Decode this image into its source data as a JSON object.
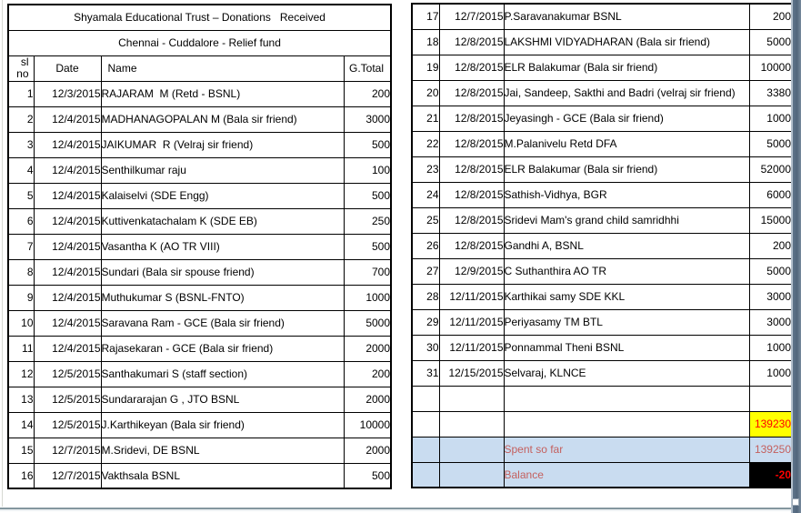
{
  "title": "Shyamala Educational Trust – Donations   Received",
  "subtitle": "Chennai - Cuddalore - Relief fund",
  "columns": {
    "sl": "sl no",
    "date": "Date",
    "name": "Name",
    "total": "G.Total"
  },
  "left_rows": [
    {
      "sl": "1",
      "date": "12/3/2015",
      "name": "RAJARAM  M (Retd - BSNL)",
      "total": "200"
    },
    {
      "sl": "2",
      "date": "12/4/2015",
      "name": "MADHANAGOPALAN M (Bala sir friend)",
      "total": "3000"
    },
    {
      "sl": "3",
      "date": "12/4/2015",
      "name": "JAIKUMAR  R (Velraj sir friend)",
      "total": "500"
    },
    {
      "sl": "4",
      "date": "12/4/2015",
      "name": "Senthilkumar raju",
      "total": "100"
    },
    {
      "sl": "5",
      "date": "12/4/2015",
      "name": "Kalaiselvi (SDE Engg)",
      "total": "500"
    },
    {
      "sl": "6",
      "date": "12/4/2015",
      "name": "Kuttivenkatachalam K (SDE EB)",
      "total": "250"
    },
    {
      "sl": "7",
      "date": "12/4/2015",
      "name": "Vasantha K (AO TR VIII)",
      "total": "500"
    },
    {
      "sl": "8",
      "date": "12/4/2015",
      "name": "Sundari (Bala sir spouse friend)",
      "total": "700"
    },
    {
      "sl": "9",
      "date": "12/4/2015",
      "name": "Muthukumar S (BSNL-FNTO)",
      "total": "1000"
    },
    {
      "sl": "10",
      "date": "12/4/2015",
      "name": "Saravana Ram - GCE (Bala sir friend)",
      "total": "5000"
    },
    {
      "sl": "11",
      "date": "12/4/2015",
      "name": "Rajasekaran - GCE (Bala sir friend)",
      "total": "2000"
    },
    {
      "sl": "12",
      "date": "12/5/2015",
      "name": "Santhakumari S (staff section)",
      "total": "200"
    },
    {
      "sl": "13",
      "date": "12/5/2015",
      "name": "Sundararajan G , JTO BSNL",
      "total": "2000"
    },
    {
      "sl": "14",
      "date": "12/5/2015",
      "name": "J.Karthikeyan (Bala sir friend)",
      "total": "10000"
    },
    {
      "sl": "15",
      "date": "12/7/2015",
      "name": "M.Sridevi, DE BSNL",
      "total": "2000"
    },
    {
      "sl": "16",
      "date": "12/7/2015",
      "name": "Vakthsala BSNL",
      "total": "500"
    }
  ],
  "right_rows": [
    {
      "sl": "17",
      "date": "12/7/2015",
      "name": "P.Saravanakumar BSNL",
      "total": "200"
    },
    {
      "sl": "18",
      "date": "12/8/2015",
      "name": "LAKSHMI VIDYADHARAN (Bala sir friend)",
      "total": "5000"
    },
    {
      "sl": "19",
      "date": "12/8/2015",
      "name": "ELR Balakumar (Bala sir friend)",
      "total": "10000"
    },
    {
      "sl": "20",
      "date": "12/8/2015",
      "name": "Jai, Sandeep, Sakthi and Badri (velraj sir friend)",
      "total": "3380"
    },
    {
      "sl": "21",
      "date": "12/8/2015",
      "name": "Jeyasingh - GCE (Bala sir friend)",
      "total": "1000"
    },
    {
      "sl": "22",
      "date": "12/8/2015",
      "name": "M.Palanivelu Retd DFA",
      "total": "5000"
    },
    {
      "sl": "23",
      "date": "12/8/2015",
      "name": "ELR Balakumar (Bala sir friend)",
      "total": "52000"
    },
    {
      "sl": "24",
      "date": "12/8/2015",
      "name": "Sathish-Vidhya, BGR",
      "total": "6000"
    },
    {
      "sl": "25",
      "date": "12/8/2015",
      "name": "Sridevi Mam's grand child samridhhi",
      "total": "15000"
    },
    {
      "sl": "26",
      "date": "12/8/2015",
      "name": "Gandhi A, BSNL",
      "total": "200"
    },
    {
      "sl": "27",
      "date": "12/9/2015",
      "name": "C Suthanthira AO TR",
      "total": "5000"
    },
    {
      "sl": "28",
      "date": "12/11/2015",
      "name": "Karthikai samy SDE KKL",
      "total": "3000"
    },
    {
      "sl": "29",
      "date": "12/11/2015",
      "name": "Periyasamy TM BTL",
      "total": "3000"
    },
    {
      "sl": "30",
      "date": "12/11/2015",
      "name": "Ponnammal Theni BSNL",
      "total": "1000"
    },
    {
      "sl": "31",
      "date": "12/15/2015",
      "name": "Selvaraj, KLNCE",
      "total": "1000"
    }
  ],
  "summary": {
    "total_value": "139230",
    "spent_label": "Spent so far",
    "spent_value": "139250",
    "balance_label": "Balance",
    "balance_value": "-20"
  },
  "colors": {
    "grand_total_bg": "#FFFF00",
    "grand_total_text": "#FF0000",
    "summary_row_bg": "#C9DCF0",
    "summary_text": "#C4605E",
    "balance_bg": "#000000",
    "balance_text": "#FF0000",
    "grid_border": "#000000",
    "window_band": "#5D7389"
  }
}
